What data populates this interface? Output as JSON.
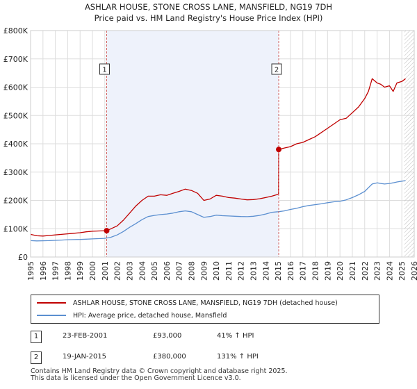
{
  "chart_data": {
    "type": "line",
    "title": "ASHLAR HOUSE, STONE CROSS LANE, MANSFIELD, NG19 7DH",
    "subtitle": "Price paid vs. HM Land Registry's House Price Index (HPI)",
    "xlim": [
      1995,
      2026
    ],
    "ylim": [
      0,
      800000
    ],
    "x_ticks": [
      "1995",
      "1996",
      "1997",
      "1998",
      "1999",
      "2000",
      "2001",
      "2002",
      "2003",
      "2004",
      "2005",
      "2006",
      "2007",
      "2008",
      "2009",
      "2010",
      "2011",
      "2012",
      "2013",
      "2014",
      "2015",
      "2016",
      "2017",
      "2018",
      "2019",
      "2020",
      "2021",
      "2022",
      "2023",
      "2024",
      "2025",
      "2026"
    ],
    "y_ticks": [
      {
        "value": 0,
        "label": "£0"
      },
      {
        "value": 100000,
        "label": "£100K"
      },
      {
        "value": 200000,
        "label": "£200K"
      },
      {
        "value": 300000,
        "label": "£300K"
      },
      {
        "value": 400000,
        "label": "£400K"
      },
      {
        "value": 500000,
        "label": "£500K"
      },
      {
        "value": 600000,
        "label": "£600K"
      },
      {
        "value": 700000,
        "label": "£700K"
      },
      {
        "value": 800000,
        "label": "£800K"
      }
    ],
    "shaded_region": [
      2001.15,
      2015.05
    ],
    "hatched_region": [
      2025.2,
      2026
    ],
    "series": [
      {
        "name": "ASHLAR HOUSE, STONE CROSS LANE, MANSFIELD, NG19 7DH (detached house)",
        "color": "#c00000",
        "x": [
          1995,
          1995.5,
          1996,
          1996.5,
          1997,
          1997.5,
          1998,
          1998.5,
          1999,
          1999.5,
          2000,
          2000.5,
          2001.15,
          2001.5,
          2002,
          2002.5,
          2003,
          2003.5,
          2004,
          2004.5,
          2005,
          2005.5,
          2006,
          2006.5,
          2007,
          2007.5,
          2008,
          2008.5,
          2009,
          2009.5,
          2010,
          2010.5,
          2011,
          2011.5,
          2012,
          2012.5,
          2013,
          2013.5,
          2014,
          2014.5,
          2015.04,
          2015.05,
          2015.5,
          2016,
          2016.5,
          2017,
          2017.5,
          2018,
          2018.5,
          2019,
          2019.5,
          2020,
          2020.5,
          2021,
          2021.5,
          2022,
          2022.3,
          2022.6,
          2023,
          2023.3,
          2023.6,
          2024,
          2024.3,
          2024.6,
          2025,
          2025.3
        ],
        "values": [
          80000,
          75000,
          74000,
          76000,
          78000,
          80000,
          82000,
          84000,
          86000,
          89000,
          91000,
          92000,
          93000,
          100000,
          110000,
          130000,
          155000,
          180000,
          200000,
          215000,
          215000,
          220000,
          218000,
          225000,
          232000,
          240000,
          235000,
          225000,
          200000,
          205000,
          218000,
          215000,
          210000,
          208000,
          205000,
          202000,
          203000,
          206000,
          210000,
          215000,
          222000,
          380000,
          385000,
          390000,
          400000,
          405000,
          415000,
          425000,
          440000,
          455000,
          470000,
          485000,
          490000,
          510000,
          530000,
          560000,
          585000,
          630000,
          615000,
          610000,
          600000,
          605000,
          585000,
          615000,
          620000,
          630000
        ]
      },
      {
        "name": "HPI: Average price, detached house, Mansfield",
        "color": "#5b8fd0",
        "x": [
          1995,
          1995.5,
          1996,
          1996.5,
          1997,
          1997.5,
          1998,
          1998.5,
          1999,
          1999.5,
          2000,
          2000.5,
          2001,
          2001.5,
          2002,
          2002.5,
          2003,
          2003.5,
          2004,
          2004.5,
          2005,
          2005.5,
          2006,
          2006.5,
          2007,
          2007.5,
          2008,
          2008.5,
          2009,
          2009.5,
          2010,
          2010.5,
          2011,
          2011.5,
          2012,
          2012.5,
          2013,
          2013.5,
          2014,
          2014.5,
          2015,
          2015.5,
          2016,
          2016.5,
          2017,
          2017.5,
          2018,
          2018.5,
          2019,
          2019.5,
          2020,
          2020.5,
          2021,
          2021.5,
          2022,
          2022.3,
          2022.6,
          2023,
          2023.3,
          2023.6,
          2024,
          2024.3,
          2024.6,
          2025,
          2025.3
        ],
        "values": [
          58000,
          57000,
          57500,
          58000,
          59000,
          60000,
          61000,
          61500,
          62000,
          63000,
          64000,
          65000,
          66000,
          70000,
          78000,
          90000,
          105000,
          118000,
          132000,
          143000,
          147000,
          150000,
          152000,
          155000,
          160000,
          163000,
          160000,
          150000,
          140000,
          143000,
          148000,
          146000,
          145000,
          144000,
          143000,
          142500,
          144000,
          147000,
          152000,
          158000,
          160000,
          163000,
          168000,
          172000,
          178000,
          182000,
          185000,
          188000,
          192000,
          195000,
          197000,
          202000,
          210000,
          220000,
          232000,
          245000,
          258000,
          262000,
          260000,
          258000,
          260000,
          262000,
          265000,
          268000,
          270000
        ]
      }
    ],
    "sale_markers": [
      {
        "label": "1",
        "x": 2001.15,
        "value": 93000
      },
      {
        "label": "2",
        "x": 2015.05,
        "value": 380000
      }
    ]
  },
  "legend": {
    "items": [
      {
        "label": "ASHLAR HOUSE, STONE CROSS LANE, MANSFIELD, NG19 7DH (detached house)",
        "color": "#c00000"
      },
      {
        "label": "HPI: Average price, detached house, Mansfield",
        "color": "#5b8fd0"
      }
    ]
  },
  "sales": [
    {
      "num": "1",
      "date": "23-FEB-2001",
      "price": "£93,000",
      "hpi": "41% ↑ HPI"
    },
    {
      "num": "2",
      "date": "19-JAN-2015",
      "price": "£380,000",
      "hpi": "131% ↑ HPI"
    }
  ],
  "footer": {
    "line1": "Contains HM Land Registry data © Crown copyright and database right 2025.",
    "line2": "This data is licensed under the Open Government Licence v3.0."
  }
}
